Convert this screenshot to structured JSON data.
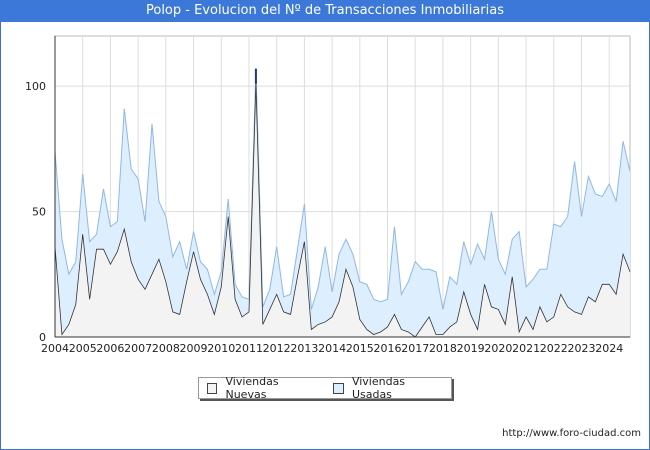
{
  "title": "Polop - Evolucion del Nº de Transacciones Inmobiliarias",
  "source": "http://www.foro-ciudad.com",
  "legend": {
    "nuevas": "Viviendas Nuevas",
    "usadas": "Viviendas Usadas"
  },
  "colors": {
    "nuevas_fill": "#f3f3f3",
    "nuevas_line": "#333333",
    "usadas_fill": "#ddeeff",
    "usadas_line": "#8fb8e6",
    "spike": "#1a3a7a",
    "grid": "#dddddd",
    "axis": "#333333",
    "title_bg": "#3c78d8"
  },
  "chart_data": {
    "type": "area",
    "title": "Polop - Evolucion del Nº de Transacciones Inmobiliarias",
    "xlabel": "",
    "ylabel": "",
    "x_ticks": [
      "2004",
      "2005",
      "2006",
      "2007",
      "2008",
      "2009",
      "2010",
      "2011",
      "2012",
      "2013",
      "2014",
      "2015",
      "2016",
      "2017",
      "2018",
      "2019",
      "2020",
      "2021",
      "2022",
      "2023",
      "2024"
    ],
    "y_ticks": [
      0,
      50,
      100
    ],
    "ylim": [
      0,
      120
    ],
    "x_start": 2004.0,
    "x_end": 2024.75,
    "stacked": true,
    "grid": true,
    "series": [
      {
        "name": "Viviendas Nuevas",
        "values": [
          36,
          1,
          5,
          13,
          41,
          15,
          35,
          35,
          29,
          34,
          43,
          30,
          23,
          19,
          25,
          31,
          22,
          10,
          9,
          22,
          34,
          23,
          17,
          9,
          20,
          48,
          15,
          8,
          10,
          101,
          5,
          11,
          17,
          10,
          9,
          24,
          38,
          3,
          5,
          6,
          8,
          14,
          27,
          20,
          7,
          3,
          1,
          2,
          4,
          9,
          3,
          2,
          0,
          4,
          8,
          1,
          1,
          4,
          6,
          18,
          9,
          3,
          21,
          12,
          11,
          5,
          24,
          2,
          8,
          3,
          12,
          6,
          8,
          17,
          12,
          10,
          9,
          16,
          14,
          21,
          21,
          17,
          33,
          26
        ]
      },
      {
        "name": "Viviendas Usadas",
        "values": [
          38,
          38,
          20,
          17,
          24,
          23,
          6,
          24,
          15,
          12,
          48,
          37,
          40,
          27,
          60,
          23,
          26,
          22,
          29,
          5,
          8,
          7,
          10,
          8,
          6,
          7,
          6,
          8,
          5,
          6,
          7,
          8,
          19,
          6,
          8,
          11,
          15,
          8,
          15,
          30,
          10,
          19,
          12,
          13,
          15,
          18,
          14,
          12,
          11,
          35,
          14,
          20,
          30,
          23,
          19,
          25,
          10,
          20,
          15,
          20,
          20,
          34,
          10,
          38,
          20,
          20,
          15,
          40,
          12,
          20,
          15,
          21,
          37,
          27,
          36,
          60,
          39,
          48,
          43,
          35,
          40,
          37,
          45,
          40
        ]
      }
    ]
  }
}
